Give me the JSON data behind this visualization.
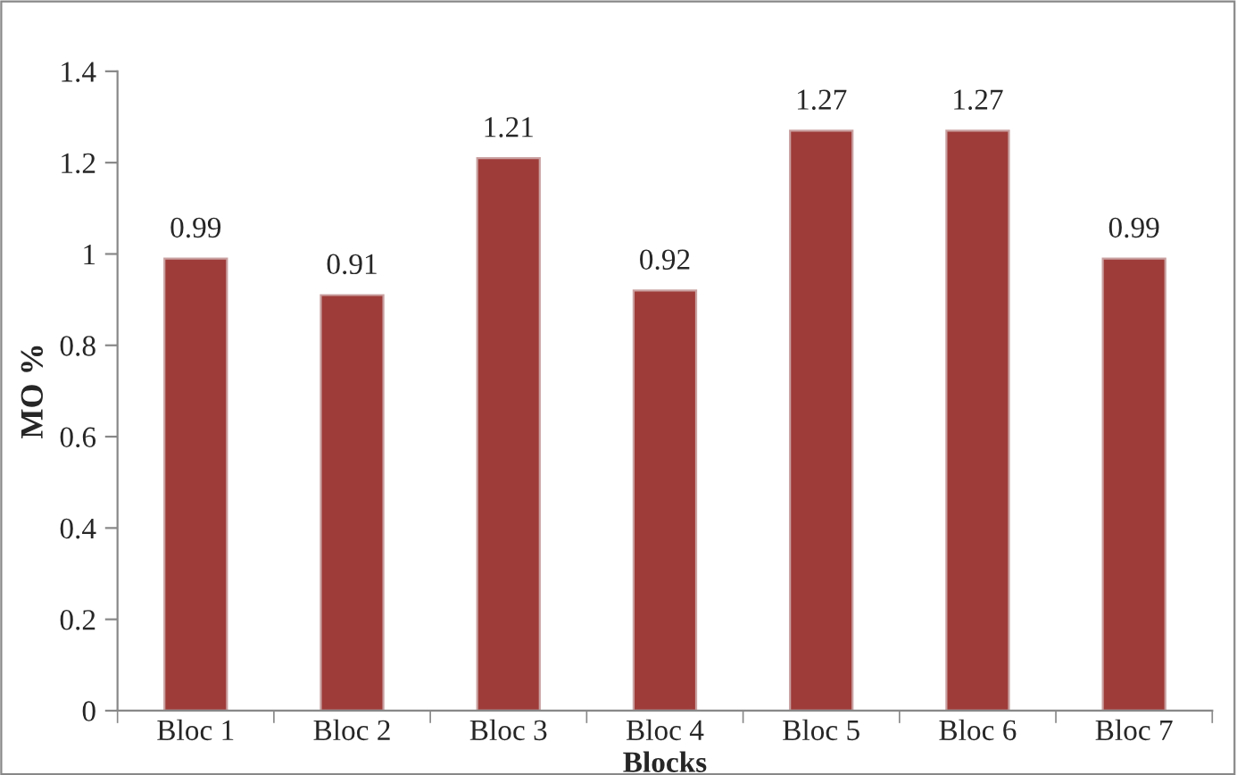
{
  "chart_data": {
    "type": "bar",
    "xlabel": "Blocks",
    "ylabel": "MO %",
    "categories": [
      "Bloc 1",
      "Bloc 2",
      "Bloc 3",
      "Bloc 4",
      "Bloc 5",
      "Bloc 6",
      "Bloc 7"
    ],
    "values": [
      0.99,
      0.91,
      1.21,
      0.92,
      1.27,
      1.27,
      0.99
    ],
    "color": "#9e3c39",
    "ylim": [
      0,
      1.4
    ],
    "yticks": [
      0,
      0.2,
      0.4,
      0.6,
      0.8,
      1,
      1.2,
      1.4
    ],
    "data_labels": true,
    "grid": false
  }
}
